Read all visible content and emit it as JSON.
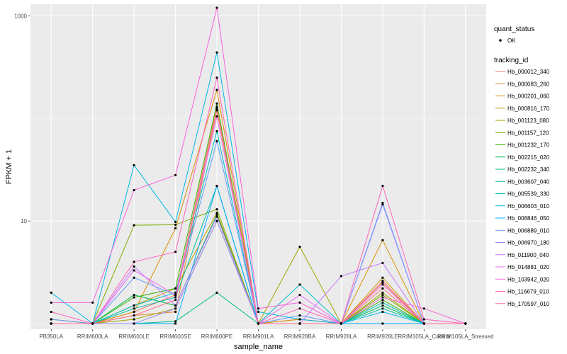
{
  "chart_data": {
    "type": "line",
    "xlabel": "sample_name",
    "ylabel": "FPKM + 1",
    "y_scale": "log10",
    "ylim": [
      0.88,
      1300
    ],
    "y_ticks": [
      {
        "value": 10,
        "label": "10"
      },
      {
        "value": 1000,
        "label": "1000"
      }
    ],
    "grid": true,
    "categories": [
      "PB350LA",
      "RRIM600LA",
      "RRIM600LE",
      "RRIM600SE",
      "RRIM600PE",
      "RRIM901LA",
      "RRIM928BA",
      "RRIM928LA",
      "RRIM928LE",
      "RRIM105LA_Control",
      "RRIM105LA_Stressed"
    ],
    "legend_quant": {
      "title": "quant_status",
      "entries": [
        "OK"
      ]
    },
    "legend_tracking": {
      "title": "tracking_id",
      "position": "right"
    },
    "series": [
      {
        "name": "Hb_000012_340",
        "color": "#F8766D",
        "values": [
          1.1,
          1.0,
          1.3,
          1.9,
          130,
          1.0,
          1.1,
          1.0,
          2.2,
          1.0,
          1.0
        ]
      },
      {
        "name": "Hb_000083_260",
        "color": "#EA8331",
        "values": [
          1.0,
          1.0,
          1.2,
          1.3,
          120,
          1.0,
          1.0,
          1.0,
          2.5,
          1.0,
          1.0
        ]
      },
      {
        "name": "Hb_000201_060",
        "color": "#D89000",
        "values": [
          1.1,
          1.0,
          1.3,
          8.5,
          190,
          1.0,
          1.1,
          1.0,
          6.5,
          1.0,
          1.0
        ]
      },
      {
        "name": "Hb_000816_170",
        "color": "#C09B00",
        "values": [
          1.0,
          1.0,
          1.5,
          2.2,
          12.0,
          1.0,
          1.0,
          1.0,
          2.8,
          1.0,
          1.0
        ]
      },
      {
        "name": "Hb_001123_080",
        "color": "#A3A500",
        "values": [
          1.0,
          1.0,
          1.1,
          1.4,
          10.0,
          1.0,
          5.6,
          1.0,
          2.0,
          1.0,
          1.0
        ]
      },
      {
        "name": "Hb_001157_120",
        "color": "#7CAE00",
        "values": [
          1.0,
          1.0,
          9.1,
          9.2,
          13.0,
          1.0,
          1.0,
          1.0,
          1.9,
          1.0,
          1.0
        ]
      },
      {
        "name": "Hb_001232_170",
        "color": "#39B600",
        "values": [
          1.0,
          1.0,
          1.8,
          2.2,
          140,
          1.0,
          1.0,
          1.0,
          1.7,
          1.0,
          1.0
        ]
      },
      {
        "name": "Hb_002215_020",
        "color": "#00BB4E",
        "values": [
          1.0,
          1.0,
          1.9,
          1.5,
          11.5,
          1.0,
          1.0,
          1.0,
          1.5,
          1.0,
          1.0
        ]
      },
      {
        "name": "Hb_002232_340",
        "color": "#00BF7D",
        "values": [
          1.0,
          1.0,
          1.0,
          1.05,
          2.0,
          1.0,
          1.0,
          1.0,
          1.0,
          1.0,
          1.0
        ]
      },
      {
        "name": "Hb_003607_040",
        "color": "#00C1A3",
        "values": [
          1.0,
          1.0,
          1.4,
          1.8,
          22.0,
          1.0,
          1.0,
          1.0,
          1.4,
          1.0,
          1.0
        ]
      },
      {
        "name": "Hb_005539_330",
        "color": "#00BFC4",
        "values": [
          1.0,
          1.0,
          1.5,
          2.0,
          75.0,
          1.0,
          2.4,
          1.0,
          1.6,
          1.0,
          1.0
        ]
      },
      {
        "name": "Hb_006603_010",
        "color": "#00B8E7",
        "values": [
          2.0,
          1.0,
          35.0,
          9.8,
          440,
          1.3,
          1.1,
          1.0,
          1.3,
          1.0,
          1.0
        ]
      },
      {
        "name": "Hb_006846_050",
        "color": "#00A9FF",
        "values": [
          1.0,
          1.0,
          1.0,
          1.0,
          22.0,
          1.0,
          1.0,
          1.0,
          1.0,
          1.0,
          1.0
        ]
      },
      {
        "name": "Hb_006889_010",
        "color": "#619CFF",
        "values": [
          1.1,
          1.0,
          2.8,
          1.9,
          60.0,
          1.0,
          1.2,
          1.0,
          15.0,
          1.0,
          1.0
        ]
      },
      {
        "name": "Hb_006970_180",
        "color": "#9590FF",
        "values": [
          1.0,
          1.0,
          1.0,
          1.4,
          10.0,
          1.0,
          1.0,
          1.0,
          14.5,
          1.0,
          1.0
        ]
      },
      {
        "name": "Hb_011900_040",
        "color": "#C77CFF",
        "values": [
          1.0,
          1.0,
          3.6,
          1.5,
          11.0,
          1.0,
          1.0,
          2.9,
          3.9,
          1.0,
          1.0
        ]
      },
      {
        "name": "Hb_014881_020",
        "color": "#E76BF3",
        "values": [
          1.0,
          1.0,
          3.3,
          1.9,
          105,
          1.0,
          1.9,
          1.0,
          2.4,
          1.0,
          1.0
        ]
      },
      {
        "name": "Hb_103942_020",
        "color": "#FA62DB",
        "values": [
          1.6,
          1.6,
          20.0,
          28.0,
          1200,
          1.4,
          1.6,
          1.0,
          1.8,
          1.4,
          1.0
        ]
      },
      {
        "name": "Hb_116679_010",
        "color": "#FF62BC",
        "values": [
          1.3,
          1.0,
          4.0,
          5.0,
          250,
          1.0,
          1.4,
          1.0,
          22.0,
          1.1,
          1.0
        ]
      },
      {
        "name": "Hb_170597_010",
        "color": "#FF6C91",
        "values": [
          1.0,
          1.0,
          1.2,
          1.7,
          125,
          1.0,
          1.0,
          1.0,
          2.6,
          1.0,
          1.0
        ]
      }
    ]
  }
}
